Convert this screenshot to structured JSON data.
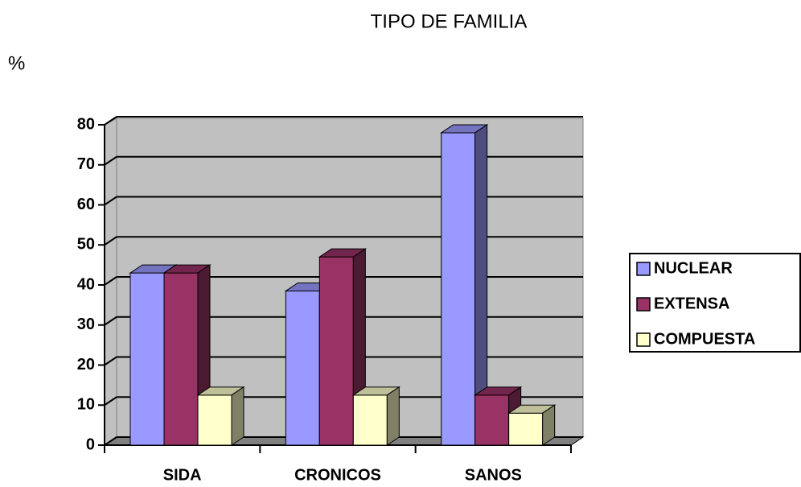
{
  "chart_data": {
    "type": "bar3d",
    "title": "TIPO DE FAMILIA",
    "y_label": "%",
    "categories": [
      "SIDA",
      "CRONICOS",
      "SANOS"
    ],
    "series": [
      {
        "name": "NUCLEAR",
        "color": "#9999ff",
        "values": [
          43,
          38.5,
          78
        ]
      },
      {
        "name": "EXTENSA",
        "color": "#993366",
        "values": [
          43,
          47,
          12.5
        ]
      },
      {
        "name": "COMPUESTA",
        "color": "#ffffcc",
        "values": [
          12.5,
          12.5,
          8
        ]
      }
    ],
    "ylim": [
      0,
      80
    ],
    "yticks": [
      0,
      10,
      20,
      30,
      40,
      50,
      60,
      70,
      80
    ],
    "grid": true,
    "legend": "right"
  }
}
